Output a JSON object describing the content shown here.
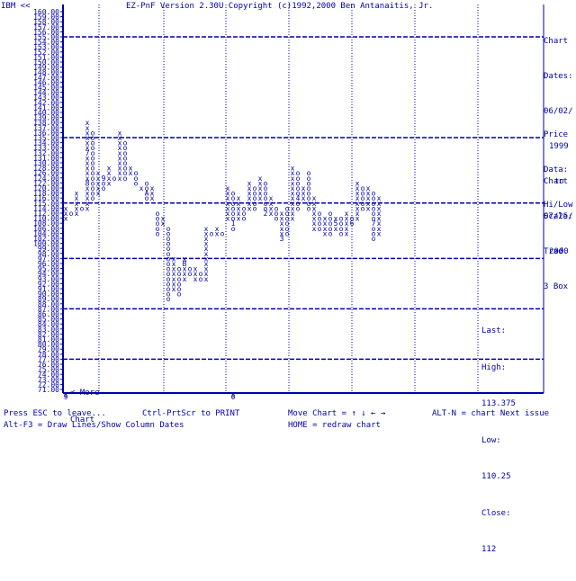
{
  "header": {
    "symbol": "IBM <<",
    "title": "EZ-PnF Version 2.30U Copyright (c)1992,2000 Ben Antanaitis, Jr."
  },
  "side_info": {
    "chart_dates_label": "Chart",
    "chart_dates_label2": "Dates:",
    "start_date": "06/02/",
    "start_year": "1999",
    "to": "to",
    "end_date": "07/25/",
    "end_year": "2000",
    "price_label": "Price",
    "price_label2": "Data:",
    "price_source": "Hi/Low",
    "scale_label": "Chart",
    "scale_label2": "Scale:",
    "scale_type": "Trad.",
    "box": "3 Box"
  },
  "stats": {
    "last_label": "Last:",
    "high_label": "High:",
    "high_value": "113.375",
    "low_label": "Low:",
    "low_value": "110.25",
    "close_label": "Close:",
    "close_value": "112"
  },
  "more_chart": {
    "line1": "<-More",
    "line2": "Chart"
  },
  "footer": {
    "esc": "Press ESC to leave...",
    "print": "Ctrl-PrtScr to PRINT",
    "move": "Move Chart = ↑ ↓ ← →",
    "next": "ALT-N = chart Next issue",
    "lines": "Alt-F3 = Draw Lines/Show Column Dates",
    "home": "HOME = redraw chart"
  },
  "chart_data": {
    "type": "point-and-figure",
    "ylim": [
      71,
      160
    ],
    "y_ticks": [
      160,
      159,
      158,
      157,
      156,
      155,
      154,
      153,
      152,
      151,
      150,
      149,
      148,
      147,
      146,
      145,
      144,
      143,
      142,
      141,
      140,
      139,
      138,
      137,
      136,
      135,
      134,
      133,
      132,
      131,
      130,
      128,
      126,
      124,
      122,
      120,
      118,
      116,
      115,
      114,
      112,
      110,
      108,
      106,
      104,
      102,
      100,
      99,
      98,
      97,
      96,
      95,
      94,
      93,
      92,
      91,
      90,
      89,
      88,
      87,
      86,
      85,
      84,
      83,
      82,
      81,
      80,
      79,
      78,
      77,
      76,
      75,
      74,
      73,
      72,
      71
    ],
    "y_tick_labels": [
      "160.00",
      "159.00",
      "158.00",
      "157.00",
      "156.00",
      "155.00",
      "154.00",
      "153.00",
      "152.00",
      "151.00",
      "150.00",
      "149.00",
      "148.00",
      "147.00",
      "146.00",
      "145.00",
      "144.00",
      "143.00",
      "142.00",
      "141.00",
      "140.00",
      "139.00",
      "138.00",
      "137.00",
      "136.00",
      "135.00",
      "134.00",
      "133.00",
      "132.00",
      "131.00",
      "130.00",
      "128.00",
      "126.00",
      "124.00",
      "122.00",
      "120.00",
      "118.00",
      "116.00",
      "115.00",
      "114.00",
      "112.00",
      "110.00",
      "108.00",
      "106.00",
      "104.00",
      "102.00",
      "100.00",
      "99.00",
      "98.00",
      "97.00",
      "96.00",
      "95.00",
      "94.00",
      "93.00",
      "92.00",
      "91.00",
      "90.00",
      "89.00",
      "88.00",
      "87.00",
      "86.00",
      "85.00",
      "84.00",
      "83.00",
      "82.00",
      "81.00",
      "80.00",
      "79.00",
      "78.00",
      "77.00",
      "76.00",
      "75.00",
      "74.00",
      "73.00",
      "72.00",
      "71.00"
    ],
    "major_levels": [
      155,
      135,
      115,
      97,
      87,
      77
    ],
    "x_bottom_labels": [
      {
        "col": 0,
        "text": "9"
      },
      {
        "col": 31,
        "text": "0"
      }
    ],
    "columns": [
      {
        "col": 0,
        "type": "X",
        "from": 110,
        "to": 114,
        "marks": {}
      },
      {
        "col": 1,
        "type": "O",
        "from": 112,
        "to": 112,
        "marks": {}
      },
      {
        "col": 2,
        "type": "X",
        "from": 112,
        "to": 118,
        "marks": {}
      },
      {
        "col": 3,
        "type": "O",
        "from": 114,
        "to": 114,
        "marks": {}
      },
      {
        "col": 4,
        "type": "X",
        "from": 114,
        "to": 138,
        "marks": {
          "132": "7",
          "122": "8"
        }
      },
      {
        "col": 5,
        "type": "O",
        "from": 116,
        "to": 136,
        "marks": {}
      },
      {
        "col": 6,
        "type": "X",
        "from": 118,
        "to": 126,
        "marks": {}
      },
      {
        "col": 7,
        "type": "O",
        "from": 120,
        "to": 124,
        "marks": {
          "124": "9"
        }
      },
      {
        "col": 8,
        "type": "X",
        "from": 122,
        "to": 128,
        "marks": {}
      },
      {
        "col": 9,
        "type": "O",
        "from": 124,
        "to": 124,
        "marks": {}
      },
      {
        "col": 10,
        "type": "X",
        "from": 124,
        "to": 136,
        "marks": {}
      },
      {
        "col": 11,
        "type": "O",
        "from": 124,
        "to": 134,
        "marks": {}
      },
      {
        "col": 12,
        "type": "X",
        "from": 126,
        "to": 128,
        "marks": {}
      },
      {
        "col": 13,
        "type": "O",
        "from": 122,
        "to": 126,
        "marks": {}
      },
      {
        "col": 14,
        "type": "X",
        "from": 120,
        "to": 120,
        "marks": {}
      },
      {
        "col": 15,
        "type": "O",
        "from": 116,
        "to": 122,
        "marks": {
          "118": "A"
        }
      },
      {
        "col": 16,
        "type": "X",
        "from": 116,
        "to": 120,
        "marks": {}
      },
      {
        "col": 17,
        "type": "O",
        "from": 104,
        "to": 112,
        "marks": {}
      },
      {
        "col": 18,
        "type": "X",
        "from": 108,
        "to": 110,
        "marks": {}
      },
      {
        "col": 19,
        "type": "O",
        "from": 89,
        "to": 106,
        "marks": {}
      },
      {
        "col": 20,
        "type": "X",
        "from": 91,
        "to": 97,
        "marks": {}
      },
      {
        "col": 21,
        "type": "O",
        "from": 90,
        "to": 95,
        "marks": {}
      },
      {
        "col": 22,
        "type": "X",
        "from": 93,
        "to": 97,
        "marks": {
          "96": "B"
        }
      },
      {
        "col": 23,
        "type": "O",
        "from": 94,
        "to": 95,
        "marks": {}
      },
      {
        "col": 24,
        "type": "X",
        "from": 93,
        "to": 95,
        "marks": {}
      },
      {
        "col": 25,
        "type": "O",
        "from": 93,
        "to": 94,
        "marks": {}
      },
      {
        "col": 26,
        "type": "X",
        "from": 93,
        "to": 106,
        "marks": {}
      },
      {
        "col": 27,
        "type": "O",
        "from": 104,
        "to": 104,
        "marks": {}
      },
      {
        "col": 28,
        "type": "X",
        "from": 104,
        "to": 106,
        "marks": {}
      },
      {
        "col": 29,
        "type": "O",
        "from": 104,
        "to": 104,
        "marks": {}
      },
      {
        "col": 30,
        "type": "X",
        "from": 110,
        "to": 120,
        "marks": {}
      },
      {
        "col": 31,
        "type": "O",
        "from": 106,
        "to": 118,
        "marks": {
          "108": "1"
        }
      },
      {
        "col": 32,
        "type": "X",
        "from": 110,
        "to": 116,
        "marks": {}
      },
      {
        "col": 33,
        "type": "O",
        "from": 110,
        "to": 114,
        "marks": {}
      },
      {
        "col": 34,
        "type": "X",
        "from": 114,
        "to": 122,
        "marks": {}
      },
      {
        "col": 35,
        "type": "O",
        "from": 114,
        "to": 120,
        "marks": {}
      },
      {
        "col": 36,
        "type": "X",
        "from": 116,
        "to": 124,
        "marks": {}
      },
      {
        "col": 37,
        "type": "O",
        "from": 112,
        "to": 122,
        "marks": {
          "112": "2"
        }
      },
      {
        "col": 38,
        "type": "X",
        "from": 112,
        "to": 116,
        "marks": {}
      },
      {
        "col": 39,
        "type": "O",
        "from": 110,
        "to": 114,
        "marks": {}
      },
      {
        "col": 40,
        "type": "X",
        "from": 102,
        "to": 112,
        "marks": {
          "102": "3"
        }
      },
      {
        "col": 41,
        "type": "O",
        "from": 104,
        "to": 114,
        "marks": {}
      },
      {
        "col": 42,
        "type": "X",
        "from": 110,
        "to": 128,
        "marks": {}
      },
      {
        "col": 43,
        "type": "O",
        "from": 114,
        "to": 126,
        "marks": {
          "116": "4"
        }
      },
      {
        "col": 44,
        "type": "X",
        "from": 116,
        "to": 120,
        "marks": {}
      },
      {
        "col": 45,
        "type": "O",
        "from": 114,
        "to": 126,
        "marks": {}
      },
      {
        "col": 46,
        "type": "X",
        "from": 106,
        "to": 116,
        "marks": {}
      },
      {
        "col": 47,
        "type": "O",
        "from": 106,
        "to": 112,
        "marks": {}
      },
      {
        "col": 48,
        "type": "X",
        "from": 104,
        "to": 110,
        "marks": {}
      },
      {
        "col": 49,
        "type": "O",
        "from": 104,
        "to": 112,
        "marks": {}
      },
      {
        "col": 50,
        "type": "X",
        "from": 106,
        "to": 110,
        "marks": {
          "108": "5"
        }
      },
      {
        "col": 51,
        "type": "O",
        "from": 104,
        "to": 110,
        "marks": {}
      },
      {
        "col": 52,
        "type": "X",
        "from": 104,
        "to": 112,
        "marks": {}
      },
      {
        "col": 53,
        "type": "O",
        "from": 108,
        "to": 110,
        "marks": {
          "108": "6"
        }
      },
      {
        "col": 54,
        "type": "X",
        "from": 110,
        "to": 122,
        "marks": {}
      },
      {
        "col": 55,
        "type": "O",
        "from": 114,
        "to": 120,
        "marks": {}
      },
      {
        "col": 56,
        "type": "X",
        "from": 114,
        "to": 120,
        "marks": {}
      },
      {
        "col": 57,
        "type": "O",
        "from": 102,
        "to": 118,
        "marks": {
          "108": "7"
        }
      },
      {
        "col": 58,
        "type": "X",
        "from": 104,
        "to": 116,
        "marks": {}
      }
    ]
  }
}
